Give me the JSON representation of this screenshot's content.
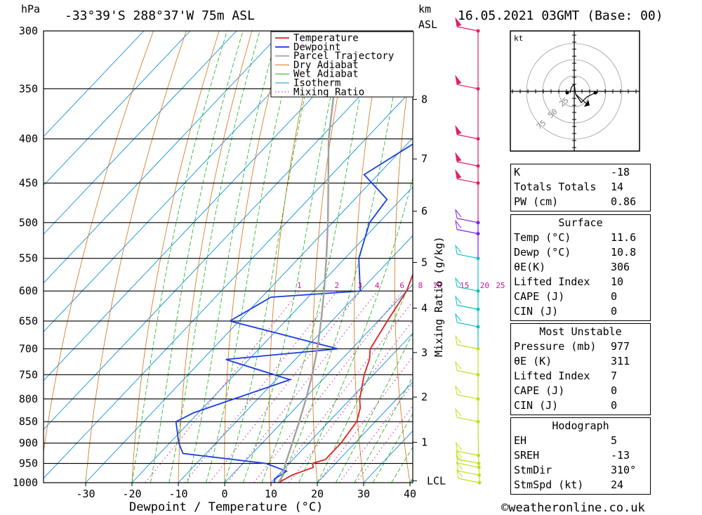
{
  "header": {
    "unit_left": "hPa",
    "location": "-33°39'S 288°37'W 75m ASL",
    "unit_km": "km",
    "unit_asl": "ASL",
    "datetime": "16.05.2021 03GMT (Base: 00)"
  },
  "chart_data": {
    "type": "line",
    "chart_kind": "skew-T log-P diagram",
    "xlabel": "Dewpoint / Temperature (°C)",
    "ylabel_left": "hPa",
    "ylabel_right": "Mixing Ratio (g/kg)",
    "x_ticks": [
      -30,
      -20,
      -10,
      0,
      10,
      20,
      30,
      40
    ],
    "pressure_levels": [
      300,
      350,
      400,
      450,
      500,
      550,
      600,
      650,
      700,
      750,
      800,
      850,
      900,
      950,
      1000
    ],
    "km_ticks": [
      {
        "label": "8",
        "p": 360
      },
      {
        "label": "7",
        "p": 422
      },
      {
        "label": "6",
        "p": 485
      },
      {
        "label": "5",
        "p": 556
      },
      {
        "label": "4",
        "p": 628
      },
      {
        "label": "3",
        "p": 707
      },
      {
        "label": "2",
        "p": 796
      },
      {
        "label": "1",
        "p": 898
      },
      {
        "label": "LCL",
        "p": 995
      }
    ],
    "mixing_ratio_labels": [
      "1",
      "2",
      "3",
      "4",
      "6",
      "8",
      "10",
      "15",
      "20",
      "25"
    ],
    "mixing_ratio_values": [
      1,
      2,
      3,
      4,
      6,
      8,
      10,
      15,
      20,
      25
    ],
    "legend": [
      "Temperature",
      "Dewpoint",
      "Parcel Trajectory",
      "Dry Adiabat",
      "Wet Adiabat",
      "Isotherm",
      "Mixing Ratio"
    ],
    "legend_position": "top-right of plot",
    "colors": {
      "temperature": "#e02020",
      "dewpoint": "#1a3ce0",
      "parcel": "#a0a0a0",
      "dry_adiabat": "#d07010",
      "wet_adiabat": "#18b018",
      "isotherm": "#1090e0",
      "mixing_ratio": "#d010a0"
    },
    "series": [
      {
        "name": "Temperature",
        "points": [
          [
            1000,
            11.6
          ],
          [
            980,
            13
          ],
          [
            960,
            16
          ],
          [
            950,
            15
          ],
          [
            940,
            17
          ],
          [
            930,
            17
          ],
          [
            900,
            17
          ],
          [
            850,
            16
          ],
          [
            820,
            14
          ],
          [
            800,
            12
          ],
          [
            750,
            8
          ],
          [
            720,
            6
          ],
          [
            700,
            4
          ],
          [
            650,
            2
          ],
          [
            600,
            0
          ],
          [
            550,
            -4
          ],
          [
            500,
            -9
          ],
          [
            470,
            -13
          ],
          [
            450,
            -13
          ],
          [
            420,
            -15
          ],
          [
            400,
            -18
          ],
          [
            350,
            -27
          ],
          [
            320,
            -33
          ],
          [
            300,
            -37
          ]
        ]
      },
      {
        "name": "Dewpoint",
        "points": [
          [
            1000,
            10.8
          ],
          [
            990,
            10
          ],
          [
            970,
            11
          ],
          [
            950,
            5
          ],
          [
            925,
            -15
          ],
          [
            900,
            -18
          ],
          [
            850,
            -23
          ],
          [
            830,
            -21
          ],
          [
            760,
            -7
          ],
          [
            720,
            -25
          ],
          [
            700,
            -3
          ],
          [
            650,
            -32
          ],
          [
            610,
            -28
          ],
          [
            600,
            -10
          ],
          [
            550,
            -17
          ],
          [
            500,
            -22
          ],
          [
            470,
            -23
          ],
          [
            440,
            -33
          ],
          [
            400,
            -28
          ],
          [
            350,
            -32
          ],
          [
            320,
            -34
          ],
          [
            310,
            -38
          ],
          [
            300,
            -40
          ]
        ]
      },
      {
        "name": "Parcel Trajectory",
        "points": [
          [
            1000,
            11.6
          ],
          [
            985,
            11.2
          ],
          [
            950,
            9.2
          ],
          [
            900,
            6.5
          ],
          [
            850,
            3.6
          ],
          [
            800,
            0.4
          ],
          [
            750,
            -3.2
          ],
          [
            700,
            -7.4
          ],
          [
            650,
            -12.3
          ],
          [
            600,
            -17.8
          ],
          [
            550,
            -24
          ],
          [
            500,
            -31
          ],
          [
            450,
            -39
          ],
          [
            400,
            -48
          ],
          [
            350,
            -57
          ],
          [
            300,
            -67
          ]
        ]
      }
    ],
    "wind_levels_hpa": [
      300,
      350,
      400,
      430,
      450,
      500,
      515,
      550,
      600,
      630,
      660,
      700,
      750,
      800,
      850,
      930,
      950,
      960,
      980,
      1000
    ],
    "hodograph": {
      "unit": "kt",
      "ring_labels": [
        "25",
        "50",
        "75"
      ]
    }
  },
  "indices": {
    "basic": [
      {
        "label": "K",
        "value": "-18"
      },
      {
        "label": "Totals Totals",
        "value": "14"
      },
      {
        "label": "PW (cm)",
        "value": "0.86"
      }
    ],
    "surface": {
      "title": "Surface",
      "rows": [
        {
          "label": "Temp (°C)",
          "value": "11.6"
        },
        {
          "label": "Dewp (°C)",
          "value": "10.8"
        },
        {
          "label": "θE(K)",
          "value": "306"
        },
        {
          "label": "Lifted Index",
          "value": "10"
        },
        {
          "label": "CAPE (J)",
          "value": "0"
        },
        {
          "label": "CIN (J)",
          "value": "0"
        }
      ]
    },
    "most_unstable": {
      "title": "Most Unstable",
      "rows": [
        {
          "label": "Pressure (mb)",
          "value": "977"
        },
        {
          "label": "θE (K)",
          "value": "311"
        },
        {
          "label": "Lifted Index",
          "value": "7"
        },
        {
          "label": "CAPE (J)",
          "value": "0"
        },
        {
          "label": "CIN (J)",
          "value": "0"
        }
      ]
    },
    "hodograph": {
      "title": "Hodograph",
      "rows": [
        {
          "label": "EH",
          "value": "5"
        },
        {
          "label": "SREH",
          "value": "-13"
        },
        {
          "label": "StmDir",
          "value": "310°"
        },
        {
          "label": "StmSpd (kt)",
          "value": "24"
        }
      ]
    }
  },
  "footer": {
    "credit": "©weatheronline.co.uk"
  }
}
